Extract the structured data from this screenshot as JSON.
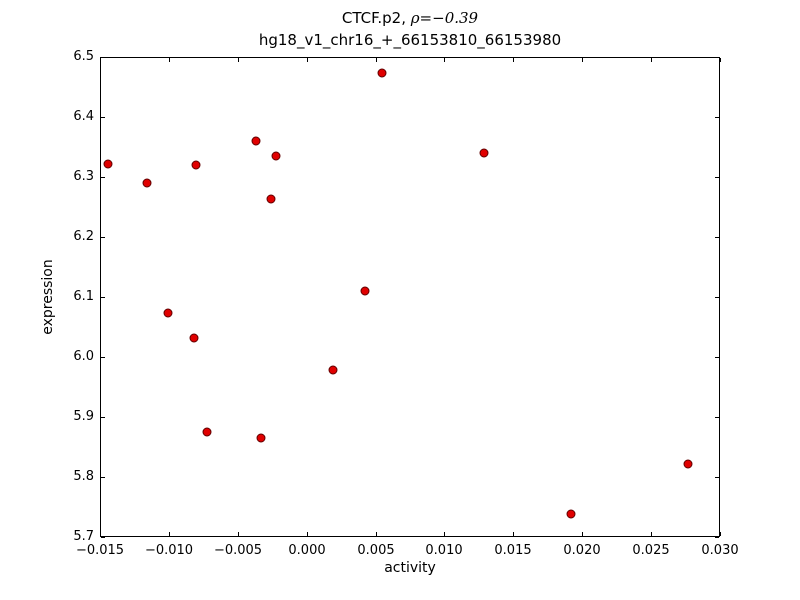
{
  "chart_data": {
    "type": "scatter",
    "title_prefix": "CTCF.p2, ",
    "title_math": "ρ=−0.39",
    "subtitle": "hg18_v1_chr16_+_66153810_66153980",
    "xlabel": "activity",
    "ylabel": "expression",
    "xlim": [
      -0.015,
      0.03
    ],
    "ylim": [
      5.7,
      6.5
    ],
    "grid": false,
    "legend": "none",
    "xtick_values": [
      -0.015,
      -0.01,
      -0.005,
      0.0,
      0.005,
      0.01,
      0.015,
      0.02,
      0.025,
      0.03
    ],
    "xtick_labels": [
      "−0.015",
      "−0.010",
      "−0.005",
      "0.000",
      "0.005",
      "0.010",
      "0.015",
      "0.020",
      "0.025",
      "0.030"
    ],
    "ytick_values": [
      5.7,
      5.8,
      5.9,
      6.0,
      6.1,
      6.2,
      6.3,
      6.4,
      6.5
    ],
    "ytick_labels": [
      "5.7",
      "5.8",
      "5.9",
      "6.0",
      "6.1",
      "6.2",
      "6.3",
      "6.4",
      "6.5"
    ],
    "marker_color": "#e00000",
    "marker_edge_color": "#600000",
    "points": [
      [
        -0.0144,
        6.322
      ],
      [
        -0.0116,
        6.29
      ],
      [
        -0.008,
        6.32
      ],
      [
        -0.0037,
        6.36
      ],
      [
        -0.0022,
        6.335
      ],
      [
        -0.0026,
        6.263
      ],
      [
        0.0055,
        6.473
      ],
      [
        0.0129,
        6.34
      ],
      [
        -0.0101,
        6.074
      ],
      [
        -0.0082,
        6.032
      ],
      [
        0.0042,
        6.11
      ],
      [
        0.0019,
        5.978
      ],
      [
        -0.0072,
        5.875
      ],
      [
        -0.0033,
        5.865
      ],
      [
        0.0277,
        5.822
      ],
      [
        0.0192,
        5.738
      ]
    ]
  }
}
